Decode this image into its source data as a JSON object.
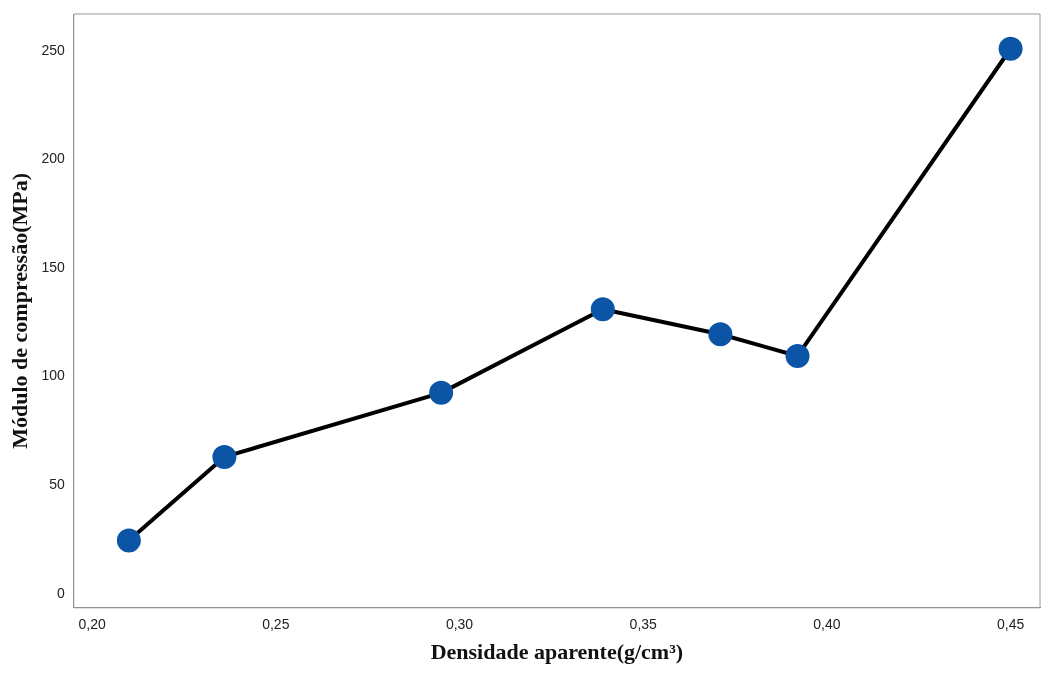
{
  "chart_data": {
    "type": "line",
    "xlabel": "Densidade aparente(g/cm³)",
    "ylabel": "Módulo de compressão(MPa)",
    "x": [
      0.21,
      0.236,
      0.295,
      0.339,
      0.371,
      0.392,
      0.45
    ],
    "series": [
      {
        "color": "#000000",
        "colors": [
          "#0c55a6",
          "#0c55a6",
          "#0c55a6",
          "#0c55a6",
          "#0c55a6",
          "#0c55a6",
          "#0c55a6"
        ],
        "values": [
          24.5,
          63,
          92.5,
          131,
          119.5,
          109.5,
          251
        ]
      }
    ],
    "marker": "circle",
    "line_style": "solid",
    "grid": false,
    "legend": false,
    "xlim": [
      0.195,
      0.458
    ],
    "xticks": [
      {
        "value": 0.2,
        "label": "0,20"
      },
      {
        "value": 0.25,
        "label": "0,25"
      },
      {
        "value": 0.3,
        "label": "0,30"
      },
      {
        "value": 0.35,
        "label": "0,35"
      },
      {
        "value": 0.4,
        "label": "0,40"
      },
      {
        "value": 0.45,
        "label": "0,45"
      }
    ],
    "ylim": [
      -6.5,
      267
    ],
    "yticks": [
      0,
      50,
      100,
      150,
      200,
      250
    ]
  }
}
